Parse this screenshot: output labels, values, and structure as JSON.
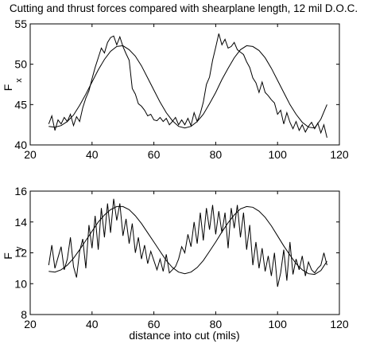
{
  "title": "Cutting and thrust forces compared with shearplane length, 12 mil D.O.C.",
  "chart_data": [
    {
      "type": "line",
      "ylabel": {
        "main": "F",
        "sub": "x"
      },
      "xlabel": "",
      "xlim": [
        20,
        120
      ],
      "ylim": [
        40,
        55
      ],
      "xticks": [
        20,
        40,
        60,
        80,
        100,
        120
      ],
      "yticks": [
        40,
        45,
        50,
        55
      ],
      "series": [
        {
          "kind": "measured",
          "x": [
            26,
            27,
            28,
            29,
            30,
            31,
            32,
            33,
            34,
            35,
            36,
            37,
            38,
            39,
            40,
            41,
            42,
            43,
            44,
            45,
            46,
            47,
            48,
            49,
            50,
            51,
            52,
            53,
            54,
            55,
            56,
            57,
            58,
            59,
            60,
            61,
            62,
            63,
            64,
            65,
            66,
            67,
            68,
            69,
            70,
            71,
            72,
            73,
            74,
            75,
            76,
            77,
            78,
            79,
            80,
            81,
            82,
            83,
            84,
            85,
            86,
            87,
            88,
            89,
            90,
            91,
            92,
            93,
            94,
            95,
            96,
            97,
            98,
            99,
            100,
            101,
            102,
            103,
            104,
            105,
            106,
            107,
            108,
            109,
            110,
            111,
            112,
            113,
            114,
            115,
            116
          ],
          "y": [
            42.6,
            43.6,
            41.8,
            43.1,
            42.6,
            43.4,
            42.9,
            43.8,
            42.4,
            43.5,
            42.9,
            44.6,
            45.8,
            46.7,
            48.2,
            49.6,
            50.8,
            52.0,
            51.4,
            52.7,
            53.3,
            53.5,
            52.4,
            53.4,
            52.2,
            51.3,
            50.5,
            47.0,
            46.3,
            45.1,
            44.8,
            44.3,
            43.6,
            43.8,
            43.1,
            43.0,
            43.4,
            42.9,
            43.3,
            42.5,
            42.9,
            43.4,
            42.5,
            43.1,
            42.5,
            43.3,
            42.4,
            44.0,
            42.9,
            43.9,
            45.3,
            47.5,
            48.4,
            50.5,
            52.1,
            53.8,
            52.4,
            53.1,
            52.0,
            52.2,
            52.7,
            51.8,
            51.5,
            51.2,
            50.3,
            49.6,
            48.3,
            47.7,
            46.5,
            47.8,
            46.5,
            46.1,
            45.6,
            45.2,
            43.8,
            44.3,
            42.6,
            44.0,
            42.8,
            42.0,
            42.9,
            41.8,
            42.5,
            41.6,
            42.3,
            42.8,
            42.0,
            42.7,
            41.5,
            42.5,
            40.9
          ]
        },
        {
          "kind": "fit",
          "x": [
            26,
            28,
            30,
            32,
            34,
            36,
            38,
            40,
            42,
            44,
            46,
            48,
            50,
            52,
            54,
            56,
            58,
            60,
            62,
            64,
            66,
            68,
            70,
            72,
            74,
            76,
            78,
            80,
            82,
            84,
            86,
            88,
            90,
            92,
            94,
            96,
            98,
            100,
            102,
            104,
            106,
            108,
            110,
            112,
            114,
            116
          ],
          "y": [
            42.3,
            42.2,
            42.4,
            42.9,
            43.7,
            44.9,
            46.3,
            47.8,
            49.3,
            50.6,
            51.6,
            52.2,
            52.3,
            51.8,
            51.0,
            49.8,
            48.3,
            46.8,
            45.3,
            44.0,
            43.0,
            42.3,
            42.1,
            42.3,
            42.9,
            43.8,
            45.1,
            46.5,
            48.1,
            49.5,
            50.8,
            51.8,
            52.3,
            52.2,
            51.7,
            50.8,
            49.5,
            48.0,
            46.5,
            45.0,
            43.8,
            42.8,
            42.2,
            42.1,
            43.2,
            45.0
          ]
        }
      ]
    },
    {
      "type": "line",
      "ylabel": {
        "main": "F",
        "sub": "y"
      },
      "xlabel": "distance into cut (mils)",
      "xlim": [
        20,
        120
      ],
      "ylim": [
        8,
        16
      ],
      "xticks": [
        20,
        40,
        60,
        80,
        100,
        120
      ],
      "yticks": [
        8,
        10,
        12,
        14,
        16
      ],
      "series": [
        {
          "kind": "measured",
          "x": [
            26,
            27,
            28,
            29,
            30,
            31,
            32,
            33,
            34,
            35,
            36,
            37,
            38,
            39,
            40,
            41,
            42,
            43,
            44,
            45,
            46,
            47,
            48,
            49,
            50,
            51,
            52,
            53,
            54,
            55,
            56,
            57,
            58,
            59,
            60,
            61,
            62,
            63,
            64,
            65,
            66,
            67,
            68,
            69,
            70,
            71,
            72,
            73,
            74,
            75,
            76,
            77,
            78,
            79,
            80,
            81,
            82,
            83,
            84,
            85,
            86,
            87,
            88,
            89,
            90,
            91,
            92,
            93,
            94,
            95,
            96,
            97,
            98,
            99,
            100,
            101,
            102,
            103,
            104,
            105,
            106,
            107,
            108,
            109,
            110,
            111,
            112,
            113,
            114,
            115,
            116
          ],
          "y": [
            11.2,
            12.5,
            11.0,
            11.7,
            12.4,
            10.9,
            11.6,
            13.0,
            11.1,
            10.4,
            12.1,
            12.9,
            11.0,
            13.8,
            12.3,
            14.4,
            12.2,
            14.9,
            13.0,
            15.2,
            13.3,
            15.5,
            14.1,
            15.2,
            13.1,
            14.2,
            12.6,
            13.9,
            12.0,
            13.0,
            11.6,
            12.5,
            11.3,
            12.1,
            11.5,
            10.9,
            11.6,
            10.8,
            11.9,
            10.7,
            10.9,
            11.1,
            11.6,
            12.4,
            12.0,
            13.2,
            12.4,
            14.0,
            12.6,
            14.6,
            12.8,
            14.9,
            13.5,
            15.1,
            13.2,
            14.7,
            13.3,
            14.6,
            12.3,
            14.9,
            13.6,
            15.1,
            13.0,
            14.6,
            12.2,
            13.8,
            11.2,
            12.7,
            11.0,
            12.3,
            10.8,
            11.8,
            10.5,
            12.0,
            9.8,
            10.7,
            12.2,
            10.2,
            12.7,
            10.6,
            11.6,
            10.9,
            11.8,
            10.5,
            11.4,
            10.9,
            10.7,
            11.0,
            11.2,
            12.0,
            11.2
          ]
        },
        {
          "kind": "fit",
          "x": [
            26,
            28,
            30,
            32,
            34,
            36,
            38,
            40,
            42,
            44,
            46,
            48,
            50,
            52,
            54,
            56,
            58,
            60,
            62,
            64,
            66,
            68,
            70,
            72,
            74,
            76,
            78,
            80,
            82,
            84,
            86,
            88,
            90,
            92,
            94,
            96,
            98,
            100,
            102,
            104,
            106,
            108,
            110,
            112,
            114,
            116
          ],
          "y": [
            10.8,
            10.75,
            10.9,
            11.2,
            11.65,
            12.2,
            12.8,
            13.4,
            14.0,
            14.45,
            14.8,
            15.0,
            15.0,
            14.8,
            14.4,
            13.9,
            13.3,
            12.7,
            12.1,
            11.5,
            11.05,
            10.75,
            10.65,
            10.75,
            11.05,
            11.5,
            12.1,
            12.7,
            13.35,
            13.95,
            14.45,
            14.85,
            15.0,
            14.95,
            14.7,
            14.3,
            13.75,
            13.1,
            12.45,
            11.85,
            11.3,
            10.9,
            10.65,
            10.6,
            10.85,
            11.45
          ]
        }
      ]
    }
  ]
}
